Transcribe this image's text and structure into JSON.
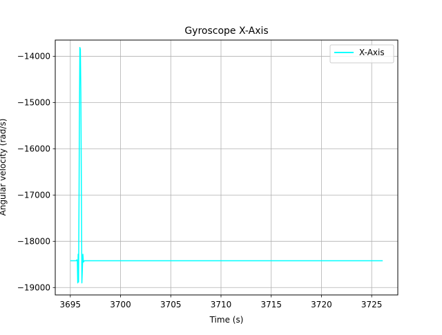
{
  "chart_data": {
    "type": "line",
    "title": "Gyroscope X-Axis",
    "xlabel": "Time (s)",
    "ylabel": "Angular velocity (rad/s)",
    "xlim": [
      3693.5,
      3727.6
    ],
    "ylim": [
      -19160,
      -13650
    ],
    "xticks": [
      3695,
      3700,
      3705,
      3710,
      3715,
      3720,
      3725
    ],
    "yticks": [
      -19000,
      -18000,
      -17000,
      -16000,
      -15000,
      -14000
    ],
    "xtick_labels": [
      "3695",
      "3700",
      "3705",
      "3710",
      "3715",
      "3720",
      "3725"
    ],
    "ytick_labels": [
      "−19000",
      "−18000",
      "−17000",
      "−16000",
      "−15000",
      "−14000"
    ],
    "grid": true,
    "legend": {
      "position": "top-right"
    },
    "series": [
      {
        "name": "X-Axis",
        "color": "#00ffff",
        "x": [
          3695.0,
          3695.6,
          3695.65,
          3695.7,
          3695.74,
          3695.78,
          3695.82,
          3695.87,
          3695.9,
          3695.95,
          3696.0,
          3696.05,
          3696.1,
          3696.15,
          3696.2,
          3696.25,
          3696.3,
          3696.4,
          3697.0,
          3700.0,
          3705.0,
          3710.0,
          3715.0,
          3720.0,
          3726.1
        ],
        "y": [
          -18420,
          -18420,
          -18400,
          -18430,
          -18900,
          -18280,
          -18880,
          -17000,
          -15500,
          -13810,
          -13850,
          -14800,
          -16800,
          -18900,
          -18600,
          -18280,
          -18450,
          -18420,
          -18420,
          -18420,
          -18420,
          -18420,
          -18420,
          -18420,
          -18420
        ]
      }
    ]
  }
}
